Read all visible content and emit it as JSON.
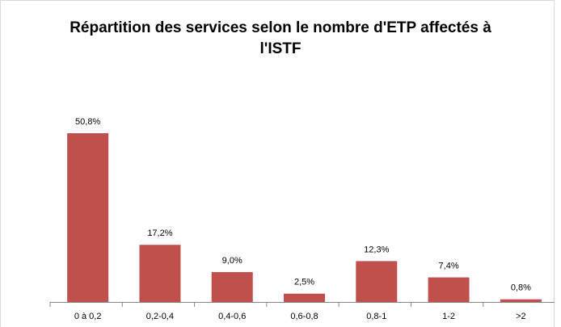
{
  "chart_data": {
    "type": "bar",
    "title": "Répartition des services selon le nombre d'ETP affectés à l'ISTF",
    "categories": [
      "0 à 0,2",
      "0,2-0,4",
      "0,4-0,6",
      "0,6-0,8",
      "0,8-1",
      "1-2",
      ">2"
    ],
    "values": [
      50.8,
      17.2,
      9.0,
      2.5,
      12.3,
      7.4,
      0.8
    ],
    "value_labels": [
      "50,8%",
      "17,2%",
      "9,0%",
      "2,5%",
      "12,3%",
      "7,4%",
      "0,8%"
    ],
    "color": "#c0504d"
  }
}
